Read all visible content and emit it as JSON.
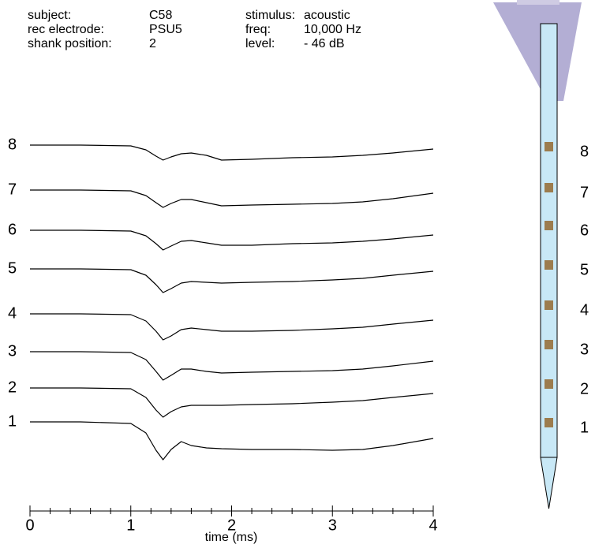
{
  "header": {
    "rows": [
      [
        "subject:",
        "C58",
        "stimulus:",
        "acoustic"
      ],
      [
        "rec electrode:",
        "PSU5",
        "freq:",
        "10,000 Hz"
      ],
      [
        "shank position:",
        "2",
        "level:",
        "- 46 dB"
      ]
    ]
  },
  "chart_data": {
    "type": "line",
    "x_label": "time (ms)",
    "x": [
      0,
      0.5,
      1.0,
      1.15,
      1.25,
      1.32,
      1.4,
      1.5,
      1.6,
      1.75,
      1.9,
      2.2,
      2.6,
      3.0,
      3.3,
      3.6,
      4.0
    ],
    "xlim": [
      0,
      4
    ],
    "xticks": [
      0,
      1,
      2,
      3,
      4
    ],
    "color": "#000000",
    "series": [
      {
        "name": "8",
        "values": [
          0,
          0,
          -1,
          -6,
          -14,
          -19,
          -15,
          -11,
          -10,
          -13,
          -19,
          -18,
          -16,
          -15,
          -13,
          -10,
          -5
        ]
      },
      {
        "name": "7",
        "values": [
          0,
          0,
          -1,
          -7,
          -16,
          -22,
          -17,
          -12,
          -12,
          -16,
          -20,
          -19,
          -18,
          -17,
          -15,
          -11,
          -4
        ]
      },
      {
        "name": "6",
        "values": [
          0,
          0,
          -1,
          -7,
          -17,
          -25,
          -20,
          -14,
          -13,
          -16,
          -19,
          -19,
          -17,
          -16,
          -14,
          -11,
          -6
        ]
      },
      {
        "name": "5",
        "values": [
          0,
          0,
          -1,
          -8,
          -20,
          -30,
          -25,
          -18,
          -16,
          -17,
          -18,
          -17,
          -16,
          -14,
          -12,
          -8,
          -3
        ]
      },
      {
        "name": "4",
        "values": [
          0,
          0,
          -1,
          -9,
          -22,
          -33,
          -28,
          -20,
          -18,
          -20,
          -22,
          -22,
          -21,
          -19,
          -17,
          -13,
          -8
        ]
      },
      {
        "name": "3",
        "values": [
          0,
          0,
          -1,
          -10,
          -25,
          -36,
          -30,
          -22,
          -22,
          -25,
          -27,
          -26,
          -25,
          -24,
          -22,
          -18,
          -12
        ]
      },
      {
        "name": "2",
        "values": [
          0,
          0,
          -1,
          -12,
          -28,
          -37,
          -30,
          -24,
          -22,
          -22,
          -22,
          -21,
          -20,
          -18,
          -16,
          -12,
          -7
        ]
      },
      {
        "name": "1",
        "values": [
          0,
          0,
          -2,
          -14,
          -36,
          -48,
          -35,
          -25,
          -30,
          -33,
          -34,
          -35,
          -35,
          -36,
          -35,
          -30,
          -21
        ]
      }
    ]
  },
  "probe": {
    "channel_labels": [
      "8",
      "7",
      "6",
      "5",
      "4",
      "3",
      "2",
      "1"
    ]
  }
}
